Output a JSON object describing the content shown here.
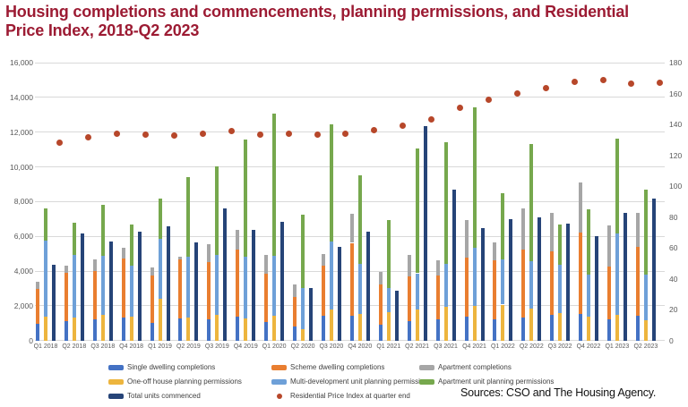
{
  "title": {
    "text": "Housing completions and commencements, planning permissions, and Residential Price Index, 2018-Q2 2023"
  },
  "sources_note": "Sources: CSO and The Housing Agency.",
  "chart_data": {
    "type": "bar",
    "subtype": "combo-stacked-bars-plus-bar-plus-scatter",
    "title": "Housing completions and commencements, planning permissions, and Residential Price Index, 2018-Q2 2023",
    "xlabel": "",
    "ylabel": "",
    "grid": "horizontal",
    "legend_position": "bottom",
    "categories": [
      "Q1 2018",
      "Q2 2018",
      "Q3 2018",
      "Q4 2018",
      "Q1 2019",
      "Q2 2019",
      "Q3 2019",
      "Q4 2019",
      "Q1 2020",
      "Q2 2020",
      "Q3 2020",
      "Q4 2020",
      "Q1 2021",
      "Q2 2021",
      "Q3 2021",
      "Q4 2021",
      "Q1 2022",
      "Q2 2022",
      "Q3 2022",
      "Q4 2022",
      "Q1 2023",
      "Q2 2023"
    ],
    "left_axis": {
      "min": 0,
      "max": 16000,
      "step": 2000,
      "tick_values": [
        0,
        2000,
        4000,
        6000,
        8000,
        10000,
        12000,
        14000,
        16000
      ],
      "tick_labels": [
        "0",
        "2,000",
        "4,000",
        "6,000",
        "8,000",
        "10,000",
        "12,000",
        "14,000",
        "16,000"
      ]
    },
    "right_axis": {
      "min": 0,
      "max": 180,
      "step": 20,
      "tick_values": [
        0,
        20,
        40,
        60,
        80,
        100,
        120,
        140,
        160,
        180
      ],
      "tick_labels": [
        "0",
        "20",
        "40",
        "60",
        "80",
        "100",
        "120",
        "140",
        "160",
        "180"
      ]
    },
    "series": [
      {
        "id": "single-dwelling-completions",
        "name": "Single dwelling completions",
        "type": "bar",
        "stack": "completions",
        "color": "#4472c4",
        "values": [
          950,
          1100,
          1200,
          1320,
          1010,
          1290,
          1240,
          1370,
          1060,
          810,
          1440,
          1450,
          930,
          1100,
          1200,
          1380,
          1240,
          1320,
          1490,
          1550,
          1240,
          1440
        ]
      },
      {
        "id": "scheme-dwelling-completions",
        "name": "Scheme dwelling completions",
        "type": "bar",
        "stack": "completions",
        "color": "#e97e30",
        "values": [
          2000,
          2800,
          2800,
          3420,
          2730,
          3380,
          3260,
          3850,
          2800,
          1720,
          2880,
          4170,
          2280,
          2570,
          2530,
          3390,
          3360,
          3900,
          3660,
          4670,
          3000,
          3950
        ]
      },
      {
        "id": "apartment-completions",
        "name": "Apartment completions",
        "type": "bar",
        "stack": "completions",
        "color": "#a6a6a6",
        "values": [
          430,
          430,
          670,
          620,
          480,
          150,
          1030,
          1170,
          1050,
          690,
          650,
          1670,
          720,
          1250,
          900,
          2150,
          1030,
          2370,
          2180,
          2880,
          2400,
          1940
        ]
      },
      {
        "id": "one-off-house-planning-permissions",
        "name": "One-off house planning permissions",
        "type": "bar",
        "stack": "permissions",
        "color": "#edb53e",
        "values": [
          1360,
          1340,
          1460,
          1370,
          2400,
          1340,
          1480,
          1270,
          1410,
          640,
          1800,
          1520,
          1630,
          1790,
          1960,
          2010,
          2070,
          1840,
          1580,
          1370,
          1460,
          1150
        ]
      },
      {
        "id": "multi-development-unit-planning-permissions",
        "name": "Multi-development unit planning permissions",
        "type": "bar",
        "stack": "permissions",
        "color": "#6ea0d8",
        "values": [
          4390,
          3600,
          3400,
          2940,
          3450,
          3500,
          3430,
          3540,
          3470,
          2400,
          3900,
          2890,
          1410,
          2080,
          2460,
          3310,
          2610,
          2750,
          2800,
          2440,
          4720,
          2630
        ]
      },
      {
        "id": "apartment-unit-planning-permissions",
        "name": "Apartment unit planning permissions",
        "type": "bar",
        "stack": "permissions",
        "color": "#76a84d",
        "values": [
          1870,
          1820,
          2940,
          2370,
          2320,
          4580,
          5120,
          6780,
          8170,
          4210,
          6750,
          5110,
          3910,
          7190,
          7020,
          8090,
          3790,
          6750,
          2320,
          3740,
          5440,
          4930
        ]
      },
      {
        "id": "total-units-commenced",
        "name": "Total units commenced",
        "type": "bar",
        "stack": null,
        "color": "#264478",
        "values": [
          4380,
          6150,
          5720,
          6250,
          6560,
          5670,
          7590,
          6390,
          6820,
          3040,
          5410,
          6260,
          2870,
          12340,
          8680,
          6490,
          6970,
          7110,
          6730,
          6010,
          7330,
          8160
        ]
      },
      {
        "id": "residential-price-index",
        "name": "Residential Price Index at quarter end",
        "type": "scatter",
        "axis": "right",
        "color": "#b7472a",
        "marker_offset": "half-category-right",
        "values": [
          128,
          131.5,
          134,
          133.5,
          133,
          134,
          135.5,
          133.5,
          134,
          133.5,
          134,
          136.5,
          139,
          143,
          150.5,
          156,
          160,
          163.5,
          167.5,
          168.5,
          166.5,
          167
        ]
      }
    ]
  }
}
